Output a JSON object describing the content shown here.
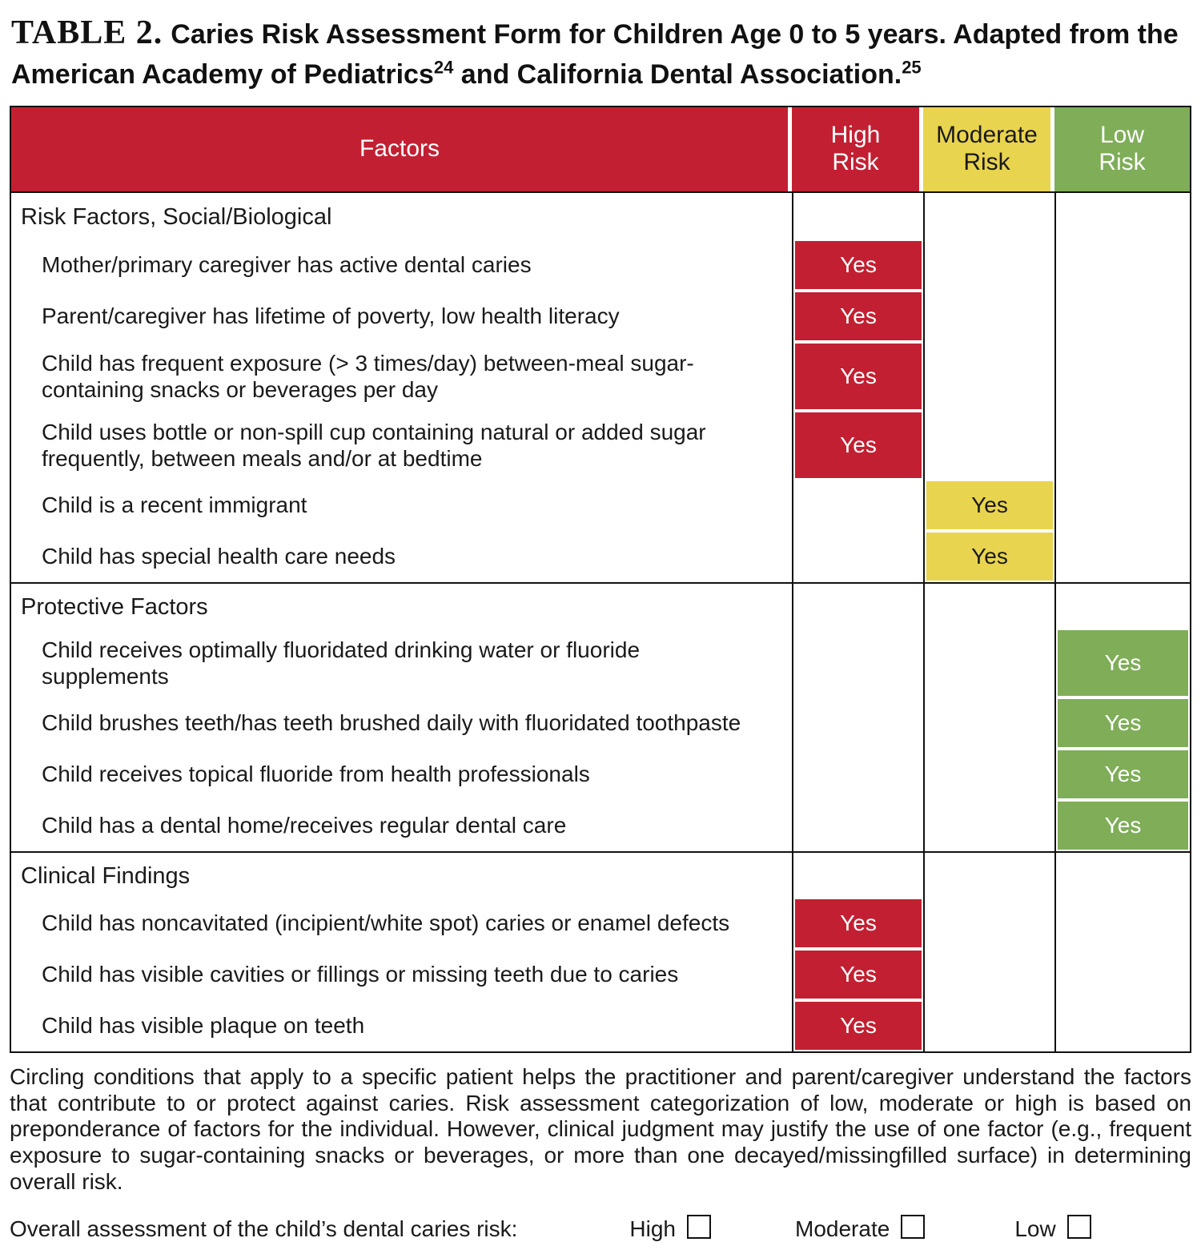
{
  "title": {
    "label": "TABLE 2.",
    "part1": "Caries Risk Assessment Form for Children Age 0 to 5 years. Adapted from the American Academy of Pediatrics",
    "sup1": "24",
    "part2": " and California Dental Association.",
    "sup2": "25"
  },
  "header": {
    "factors": "Factors",
    "cols": [
      {
        "id": "high",
        "line1": "High",
        "line2": "Risk"
      },
      {
        "id": "moderate",
        "line1": "Moderate",
        "line2": "Risk"
      },
      {
        "id": "low",
        "line1": "Low",
        "line2": "Risk"
      }
    ]
  },
  "yes_label": "Yes",
  "sections": [
    {
      "heading": "Risk Factors, Social/Biological",
      "rows": [
        {
          "factor": "Mother/primary caregiver has active dental caries",
          "risk": "high"
        },
        {
          "factor": "Parent/caregiver has lifetime of poverty, low health literacy",
          "risk": "high"
        },
        {
          "factor": "Child has frequent exposure (> 3 times/day) between-meal sugar-containing snacks or beverages per day",
          "risk": "high"
        },
        {
          "factor": "Child uses bottle or non-spill cup containing natural or added sugar frequently, between meals and/or at bedtime",
          "risk": "high"
        },
        {
          "factor": "Child is a recent immigrant",
          "risk": "moderate"
        },
        {
          "factor": "Child has special health care needs",
          "risk": "moderate"
        }
      ]
    },
    {
      "heading": "Protective Factors",
      "rows": [
        {
          "factor": "Child receives optimally fluoridated drinking water or fluoride supplements",
          "risk": "low"
        },
        {
          "factor": "Child brushes teeth/has teeth brushed daily with fluoridated toothpaste",
          "risk": "low"
        },
        {
          "factor": "Child receives topical fluoride from health professionals",
          "risk": "low"
        },
        {
          "factor": "Child has a dental home/receives regular dental care",
          "risk": "low"
        }
      ]
    },
    {
      "heading": "Clinical Findings",
      "rows": [
        {
          "factor": "Child has noncavitated (incipient/white spot) caries or enamel defects",
          "risk": "high"
        },
        {
          "factor": "Child has visible cavities or fillings or missing teeth due to caries",
          "risk": "high"
        },
        {
          "factor": "Child has visible plaque on teeth",
          "risk": "high"
        }
      ]
    }
  ],
  "footnote": "Circling conditions that apply to a specific patient helps the practitioner and parent/caregiver understand the factors that contribute to or protect against caries. Risk assessment categorization of low, moderate or high is based on preponderance of factors for the individual. However, clinical judgment may justify the use of one factor (e.g., frequent exposure to sugar-containing snacks or beverages, or more than one decayed/missingfilled surface) in determining overall risk.",
  "overall": {
    "label": "Overall assessment of the child’s dental caries risk:",
    "options": [
      "High",
      "Moderate",
      "Low"
    ]
  },
  "colors": {
    "high": "#C22032",
    "moderate": "#E9D44F",
    "low": "#7FAD58"
  }
}
